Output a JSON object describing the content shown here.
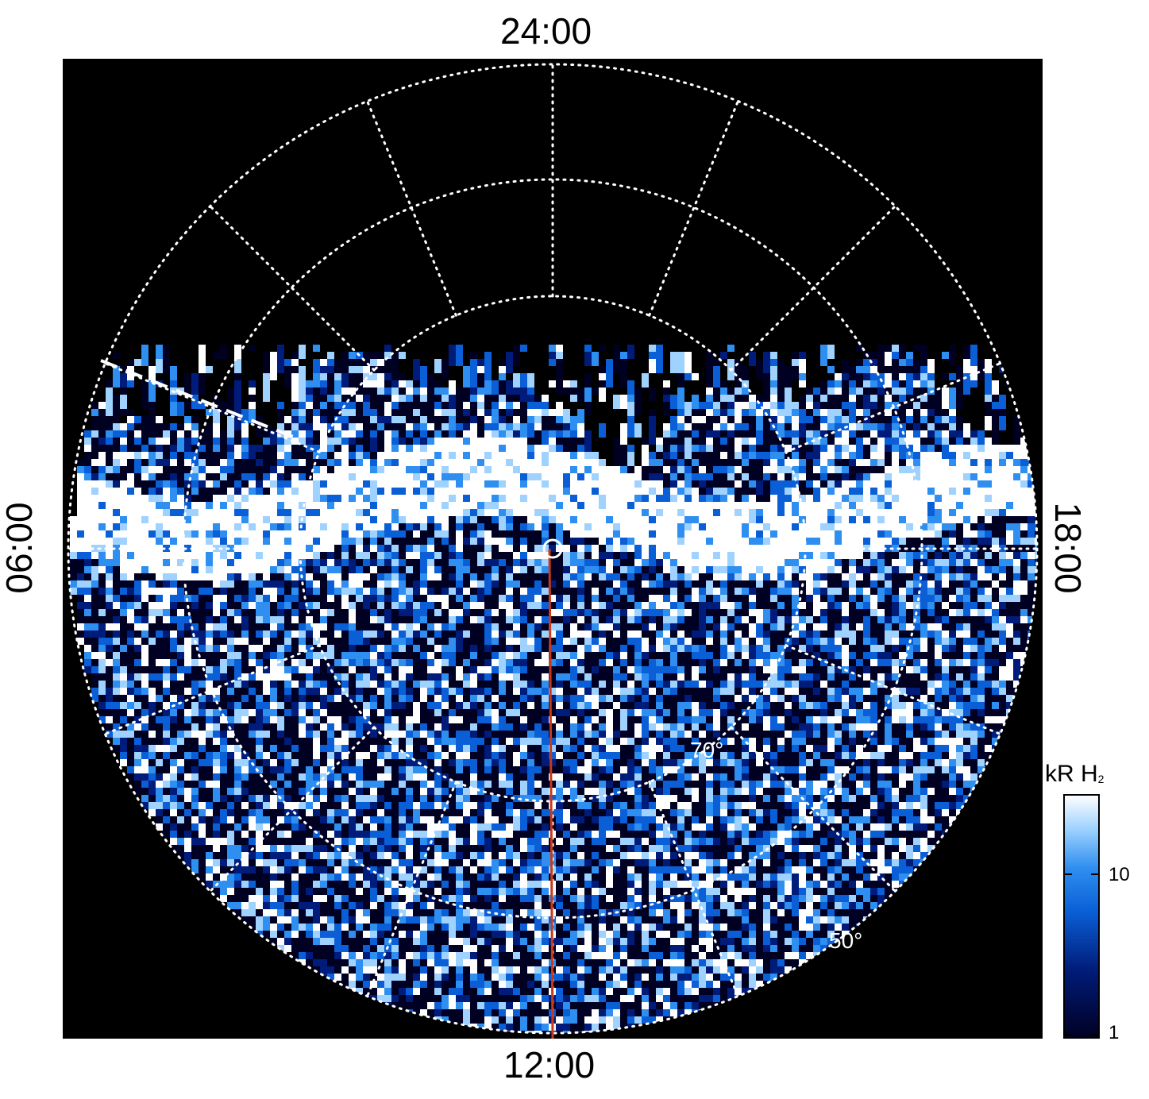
{
  "local_time_labels": {
    "top": "24:00",
    "bottom": "12:00",
    "left": "06:00",
    "right": "18:00"
  },
  "latitude_labels": {
    "inner": "70°",
    "outer": "50°"
  },
  "colorbar": {
    "title": "kR H",
    "title_subscript": "2",
    "scale": "log",
    "range": [
      1,
      30
    ],
    "ticks": [
      "10",
      "1"
    ],
    "colors": [
      "#000022",
      "#001c7a",
      "#0a5fd6",
      "#2e8ff0",
      "#9fd2ff",
      "#ffffff"
    ]
  },
  "colors": {
    "background": "#000000",
    "grid": "#ffffff",
    "meridian_line": "#c8391a"
  }
}
